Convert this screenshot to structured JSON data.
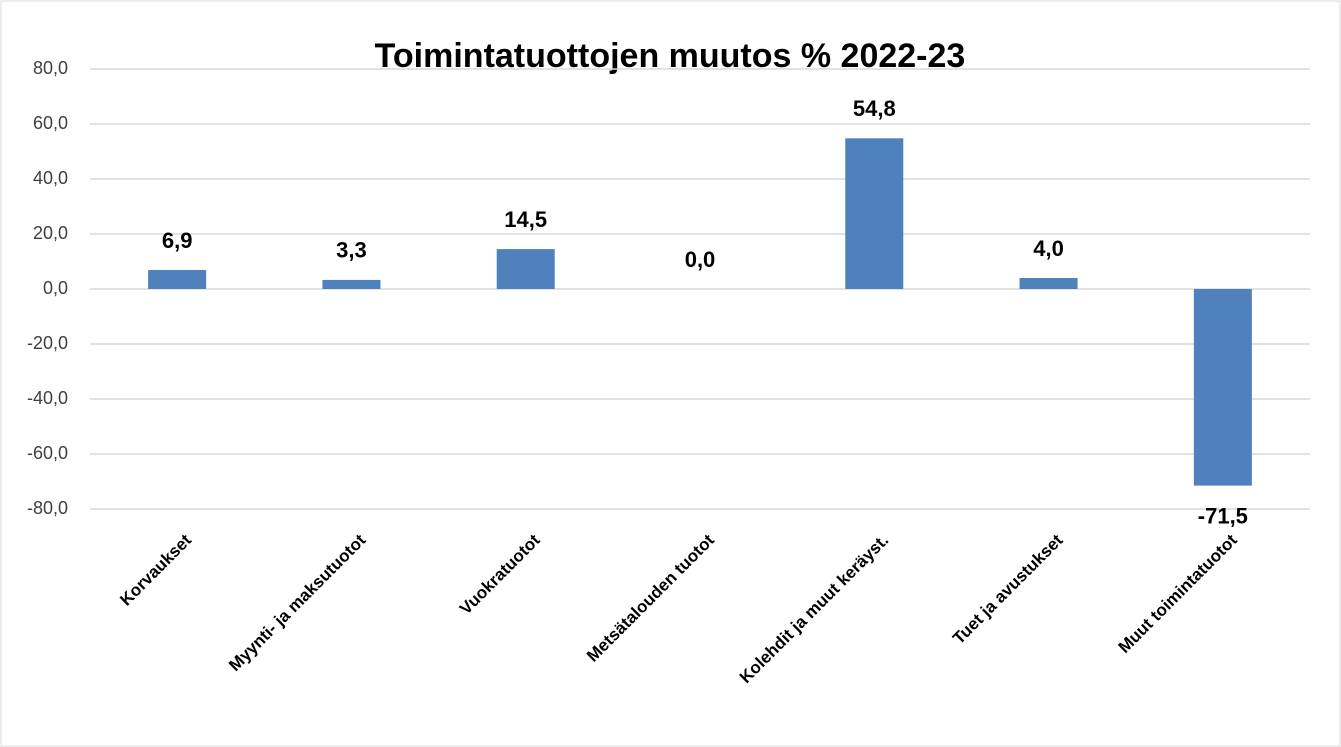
{
  "chart_data": {
    "type": "bar",
    "title": "Toimintatuottojen muutos % 2022-23",
    "categories": [
      "Korvaukset",
      "Myynti- ja maksutuotot",
      "Vuokratuotot",
      "Metsätalouden tuotot",
      "Kolehdit ja muut keräyst.",
      "Tuet ja avustukset",
      "Muut toimintatuotot"
    ],
    "values": [
      6.9,
      3.3,
      14.5,
      0.0,
      54.8,
      4.0,
      -71.5
    ],
    "value_labels": [
      "6,9",
      "3,3",
      "14,5",
      "0,0",
      "54,8",
      "4,0",
      "-71,5"
    ],
    "color": "#4f81bd",
    "ylim": [
      -80,
      80
    ],
    "yticks": [
      {
        "value": -80,
        "label": "-80,0"
      },
      {
        "value": -60,
        "label": "-60,0"
      },
      {
        "value": -40,
        "label": "-40,0"
      },
      {
        "value": -20,
        "label": "-20,0"
      },
      {
        "value": 0,
        "label": "0,0"
      },
      {
        "value": 20,
        "label": "20,0"
      },
      {
        "value": 40,
        "label": "40,0"
      },
      {
        "value": 60,
        "label": "60,0"
      },
      {
        "value": 80,
        "label": "80,0"
      }
    ],
    "grid": true
  }
}
